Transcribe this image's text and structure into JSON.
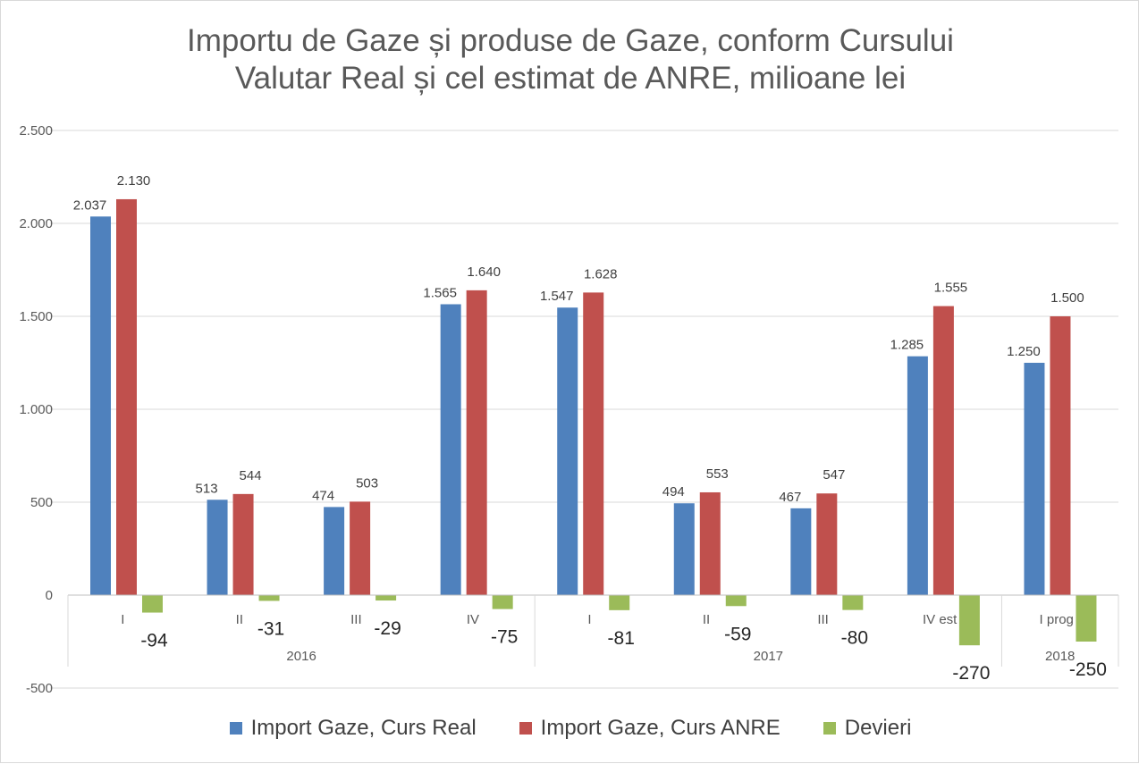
{
  "chart_data": {
    "type": "bar",
    "title_lines": [
      "Importu de Gaze și produse de Gaze, conform Cursului",
      "Valutar Real și cel estimat de ANRE, milioane lei"
    ],
    "categories": [
      "I",
      "II",
      "III",
      "IV",
      "I",
      "II",
      "III",
      "IV est",
      "I prog"
    ],
    "groups": [
      {
        "label": "2016",
        "count": 4
      },
      {
        "label": "2017",
        "count": 4
      },
      {
        "label": "2018",
        "count": 1
      }
    ],
    "series": [
      {
        "name": "Import Gaze, Curs Real",
        "color": "#4F81BD",
        "values": [
          2037,
          513,
          474,
          1565,
          1547,
          494,
          467,
          1285,
          1250
        ],
        "labels": [
          "2.037",
          "513",
          "474",
          "1.565",
          "1.547",
          "494",
          "467",
          "1.285",
          "1.250"
        ]
      },
      {
        "name": "Import Gaze, Curs ANRE",
        "color": "#C0504D",
        "values": [
          2130,
          544,
          503,
          1640,
          1628,
          553,
          547,
          1555,
          1500
        ],
        "labels": [
          "2.130",
          "544",
          "503",
          "1.640",
          "1.628",
          "553",
          "547",
          "1.555",
          "1.500"
        ]
      },
      {
        "name": "Devieri",
        "color": "#9BBB59",
        "values": [
          -94,
          -31,
          -29,
          -75,
          -81,
          -59,
          -80,
          -270,
          -250
        ],
        "labels": [
          "-94",
          "-31",
          "-29",
          "-75",
          "-81",
          "-59",
          "-80",
          "-270",
          "-250"
        ]
      }
    ],
    "yticks": [
      2500,
      2000,
      1500,
      1000,
      500,
      0,
      -500
    ],
    "ytick_labels": [
      "2.500",
      "2.000",
      "1.500",
      "1.000",
      "500",
      "0",
      "-500"
    ],
    "ylim": [
      -500,
      2500
    ],
    "grid": true,
    "legend_position": "bottom"
  }
}
